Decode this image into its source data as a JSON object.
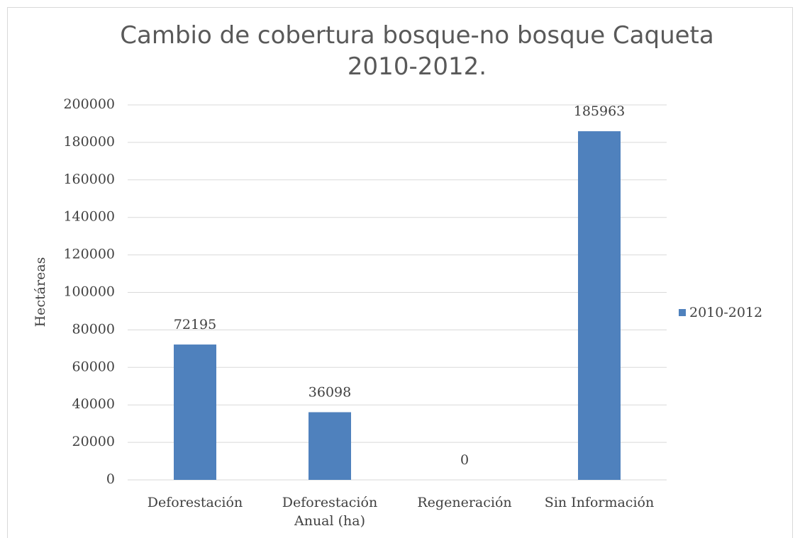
{
  "chart_data": {
    "type": "bar",
    "title": "Cambio de cobertura bosque-no bosque  Caqueta 2010-2012.",
    "y_label": "Hectáreas",
    "categories": [
      "Deforestación",
      "Deforestación Anual (ha)",
      "Regeneración",
      "Sin Información"
    ],
    "series": [
      {
        "name": "2010-2012",
        "color": "#4f81bd",
        "values": [
          72195,
          36098,
          0,
          185963
        ]
      }
    ],
    "ylim": [
      0,
      200000
    ],
    "yticks": [
      0,
      20000,
      40000,
      60000,
      80000,
      100000,
      120000,
      140000,
      160000,
      180000,
      200000
    ],
    "grid": true,
    "legend": "right",
    "data_labels": true
  }
}
